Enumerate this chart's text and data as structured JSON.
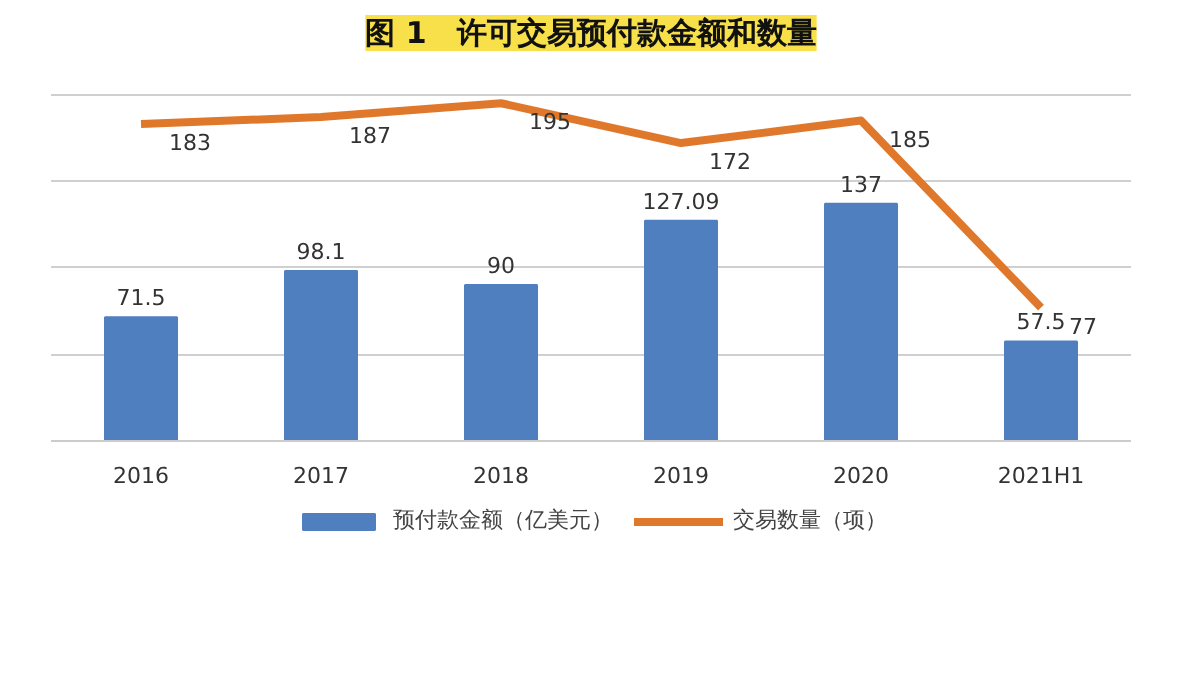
{
  "chart_data": {
    "type": "bar",
    "title": "图 1　许可交易预付款金额和数量",
    "categories": [
      "2016",
      "2017",
      "2018",
      "2019",
      "2020",
      "2021H1"
    ],
    "series": [
      {
        "name": "预付款金额（亿美元）",
        "color": "#4f7fbf",
        "values": [
          71.5,
          98.1,
          90,
          127.09,
          137,
          57.5
        ]
      },
      {
        "name": "交易数量（项）",
        "type": "line",
        "color": "#e0782c",
        "values": [
          183,
          187,
          195,
          172,
          185,
          77
        ]
      }
    ],
    "tick_labels": "x",
    "grid": "y",
    "legend": "bottom",
    "data_labels": true
  }
}
